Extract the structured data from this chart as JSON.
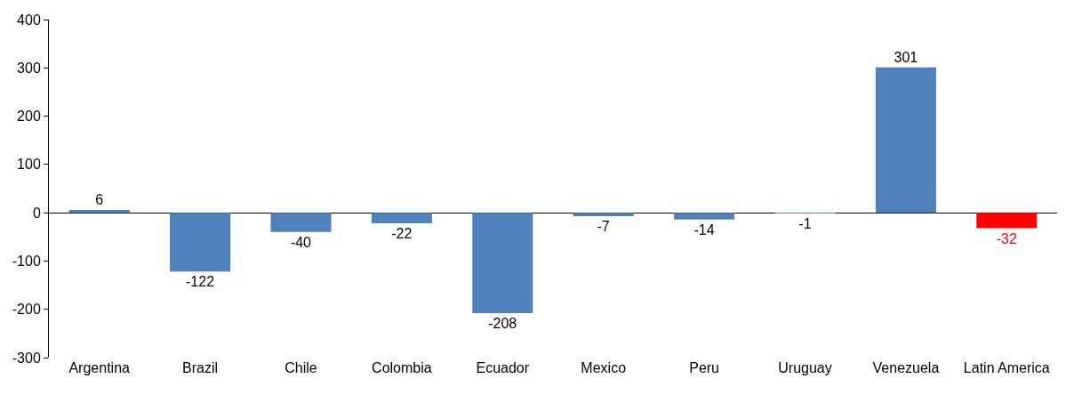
{
  "chart_data": {
    "type": "bar",
    "categories": [
      "Argentina",
      "Brazil",
      "Chile",
      "Colombia",
      "Ecuador",
      "Mexico",
      "Peru",
      "Uruguay",
      "Venezuela",
      "Latin America"
    ],
    "values": [
      6,
      -122,
      -40,
      -22,
      -208,
      -7,
      -14,
      -1,
      301,
      -32
    ],
    "colors": [
      "#4f81bd",
      "#4f81bd",
      "#4f81bd",
      "#4f81bd",
      "#4f81bd",
      "#4f81bd",
      "#4f81bd",
      "#4f81bd",
      "#4f81bd",
      "#ff0000"
    ],
    "ylim": [
      -300,
      400
    ],
    "yticks": [
      -300,
      -200,
      -100,
      0,
      100,
      200,
      300,
      400
    ],
    "data_labels": true
  }
}
